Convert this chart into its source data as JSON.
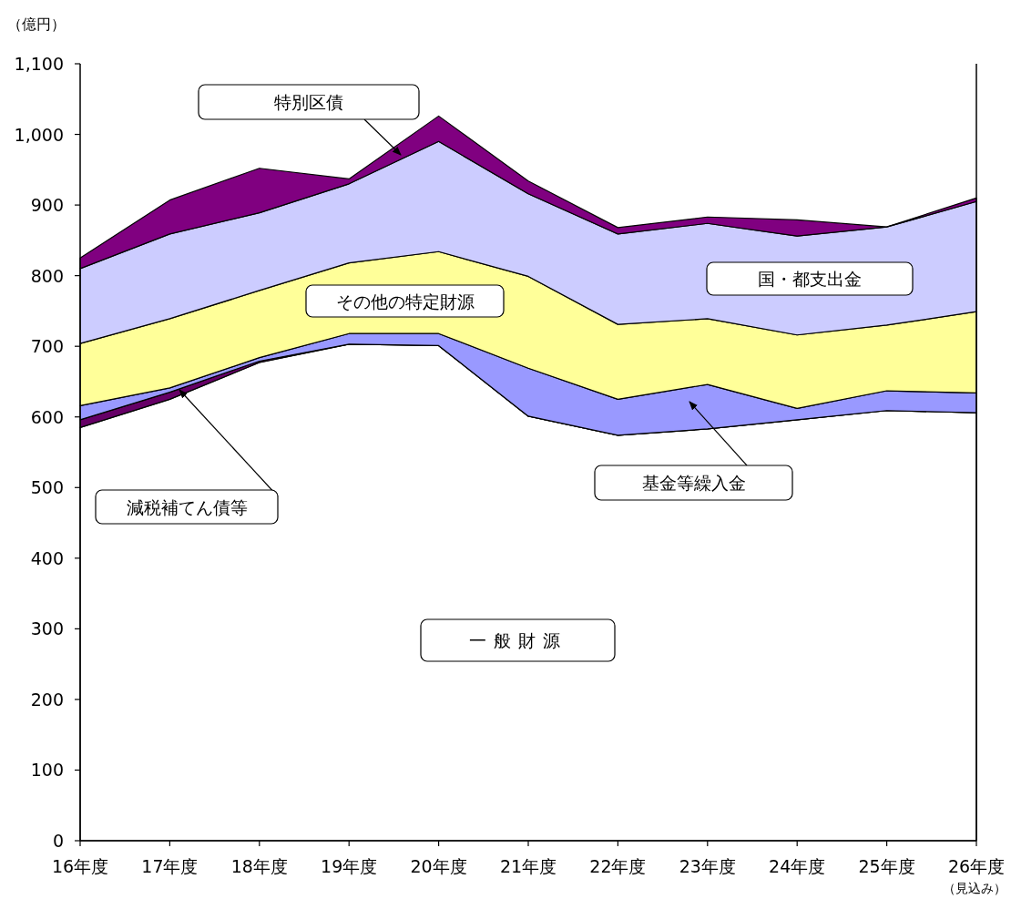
{
  "chart_data": {
    "type": "area",
    "stacked": true,
    "ylabel": "（億円）",
    "categories": [
      "16年度",
      "17年度",
      "18年度",
      "19年度",
      "20年度",
      "21年度",
      "22年度",
      "23年度",
      "24年度",
      "25年度",
      "26年度"
    ],
    "ylim": [
      0,
      1100
    ],
    "yticks": [
      0,
      100,
      200,
      300,
      400,
      500,
      600,
      700,
      800,
      900,
      {
        "value": 1000,
        "label": "1,000"
      },
      {
        "value": 1100,
        "label": "1,100"
      }
    ],
    "grid": false,
    "legend": false,
    "series": [
      {
        "name": "一般財源",
        "color": "#ffffff",
        "values": [
          585,
          625,
          677,
          703,
          701,
          601,
          574,
          583,
          596,
          609,
          606
        ]
      },
      {
        "name": "減税補てん債等",
        "color": "#660066",
        "values": [
          11,
          10,
          2,
          0,
          0,
          0,
          0,
          0,
          0,
          0,
          0
        ]
      },
      {
        "name": "基金等繰入金",
        "color": "#9999ff",
        "values": [
          20,
          6,
          5,
          15,
          17,
          68,
          51,
          63,
          16,
          28,
          28
        ]
      },
      {
        "name": "その他の特定財源",
        "color": "#ffff99",
        "values": [
          88,
          98,
          95,
          100,
          116,
          130,
          106,
          93,
          104,
          93,
          115
        ]
      },
      {
        "name": "国・都支出金",
        "color": "#ccccff",
        "values": [
          106,
          120,
          110,
          112,
          156,
          117,
          128,
          135,
          140,
          139,
          156
        ]
      },
      {
        "name": "特別区債",
        "color": "#800080",
        "values": [
          15,
          48,
          63,
          7,
          36,
          18,
          9,
          9,
          23,
          0,
          5
        ]
      }
    ],
    "annotations": [
      "（見込み）"
    ]
  }
}
